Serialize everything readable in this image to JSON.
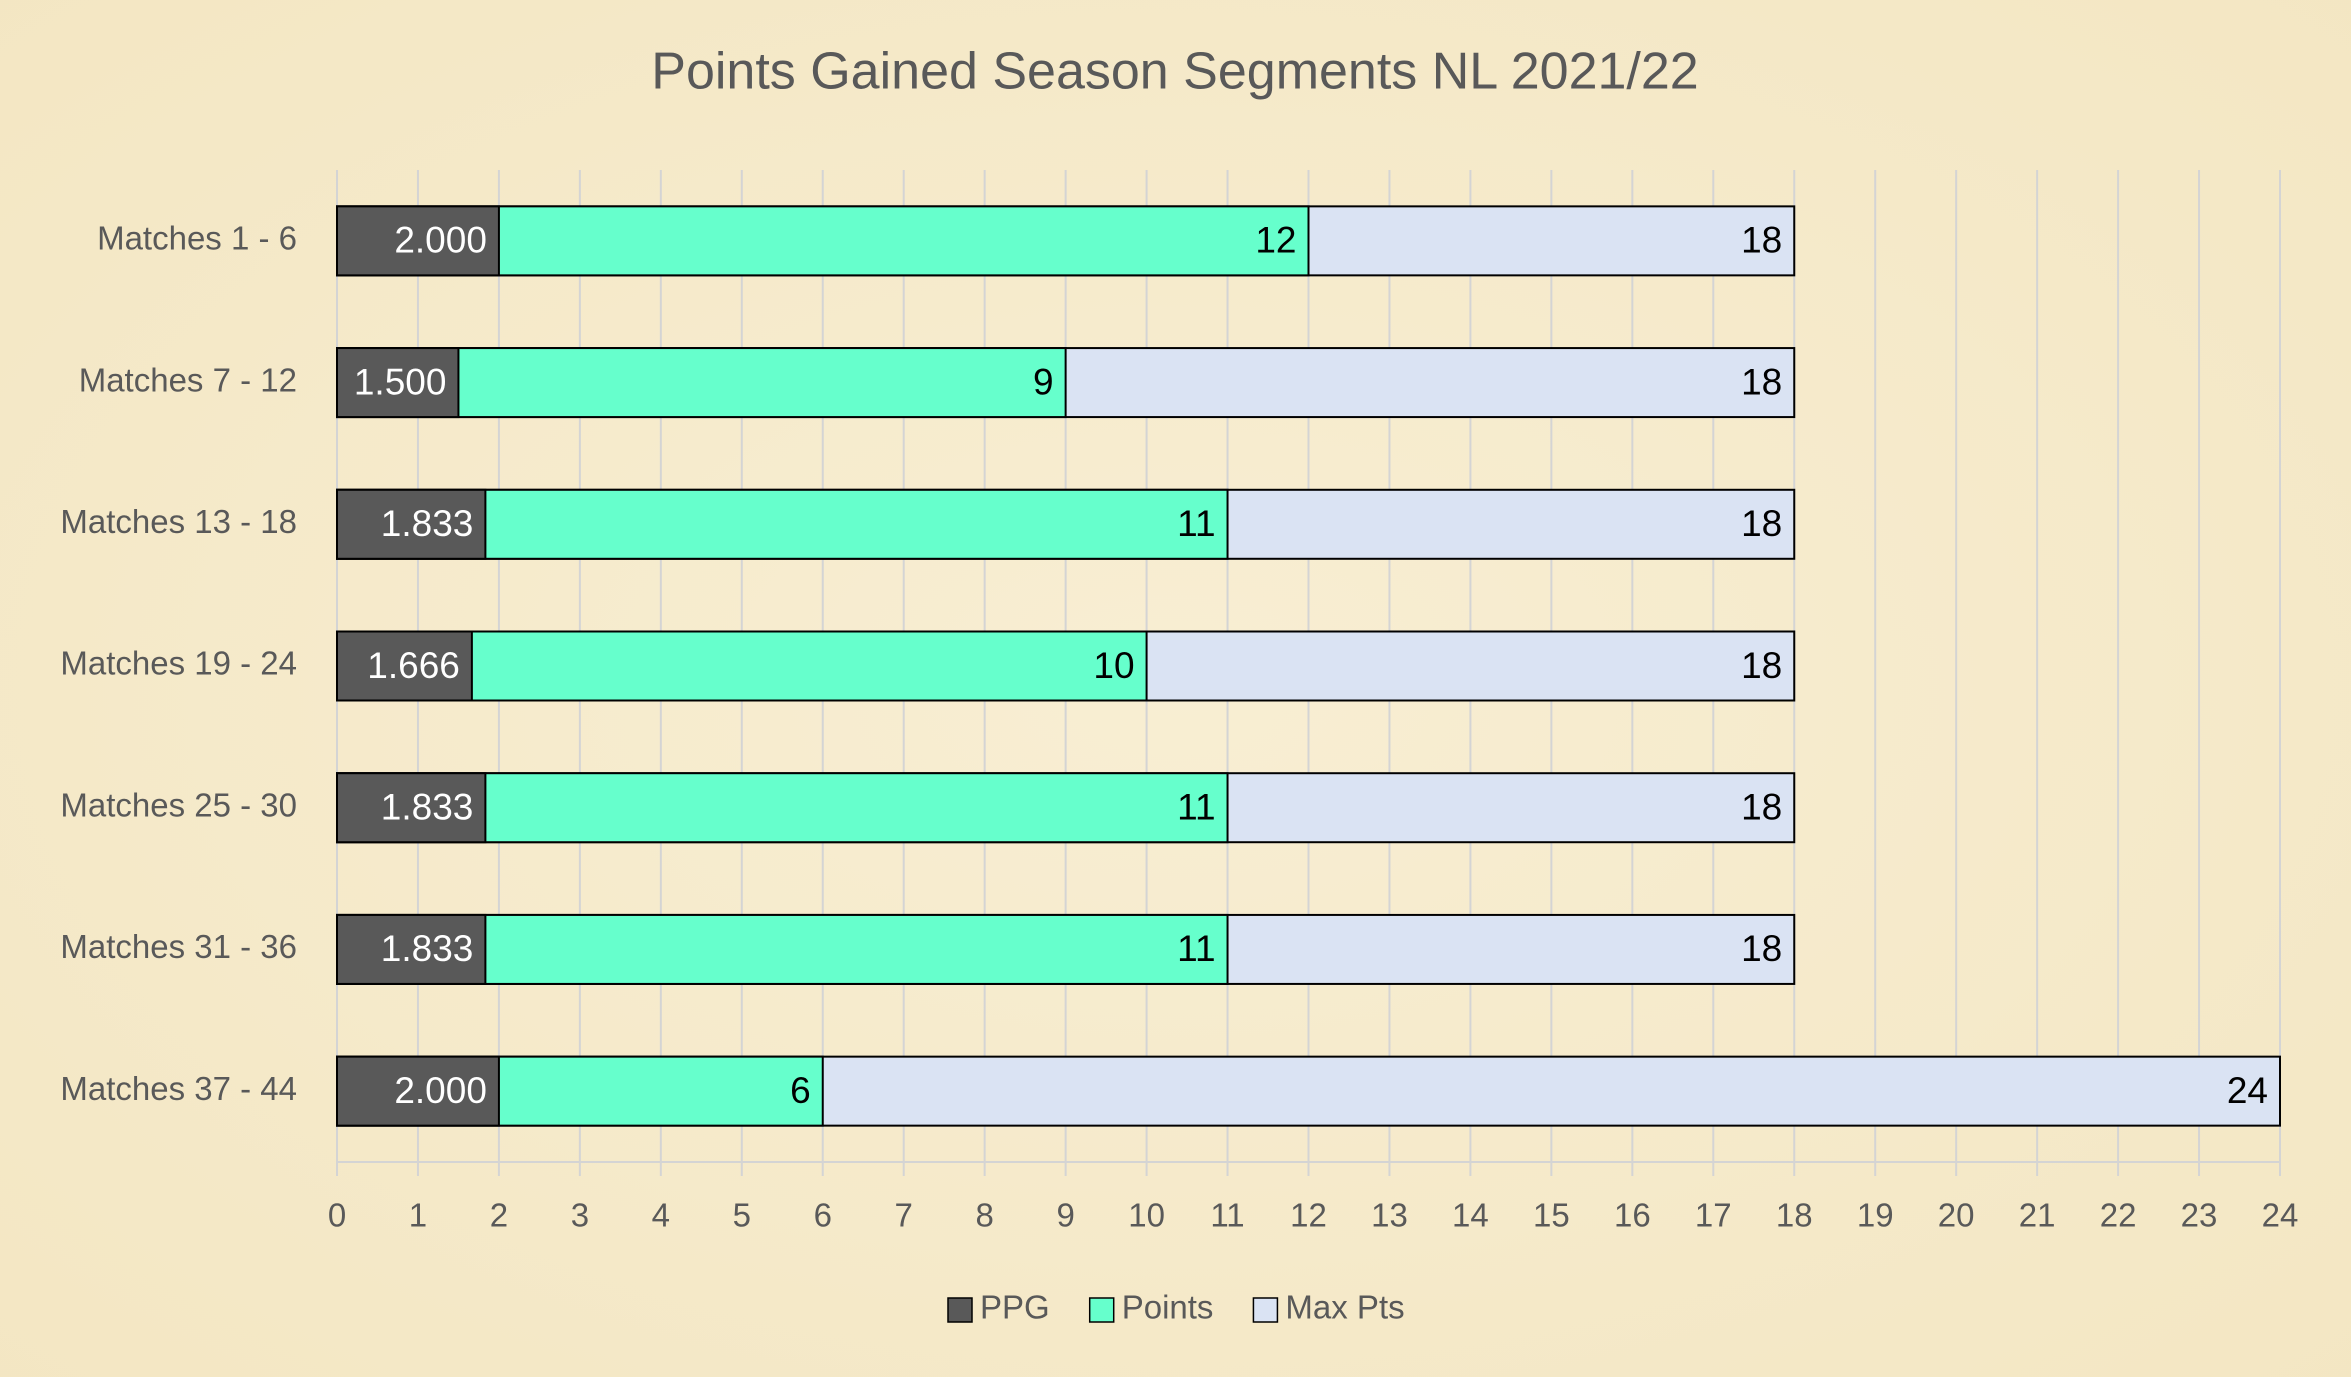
{
  "chart_data": {
    "type": "overlapped-bar",
    "orientation": "horizontal",
    "title": "Points Gained Season Segments NL 2021/22",
    "categories": [
      "Matches 1 - 6",
      "Matches 7 - 12",
      "Matches 13 - 18",
      "Matches 19 - 24",
      "Matches 25 - 30",
      "Matches 31 - 36",
      "Matches 37 - 44"
    ],
    "series": [
      {
        "name": "PPG",
        "color": "#595959",
        "label_color": "#ffffff",
        "values": [
          2,
          1.5,
          1.833,
          1.666,
          1.833,
          1.833,
          2
        ],
        "value_labels": [
          "2.000",
          "1.500",
          "1.833",
          "1.666",
          "1.833",
          "1.833",
          "2.000"
        ]
      },
      {
        "name": "Points",
        "color": "#66ffcc",
        "label_color": "#000000",
        "values": [
          12,
          9,
          11,
          10,
          11,
          11,
          6
        ]
      },
      {
        "name": "Max Pts",
        "color": "#dae3f3",
        "label_color": "#000000",
        "values": [
          18,
          18,
          18,
          18,
          18,
          18,
          24
        ]
      }
    ],
    "xlim": [
      0,
      24
    ],
    "xticks": [
      0,
      1,
      2,
      3,
      4,
      5,
      6,
      7,
      8,
      9,
      10,
      11,
      12,
      13,
      14,
      15,
      16,
      17,
      18,
      19,
      20,
      21,
      22,
      23,
      24
    ],
    "grid": true,
    "legend": "bottom"
  }
}
